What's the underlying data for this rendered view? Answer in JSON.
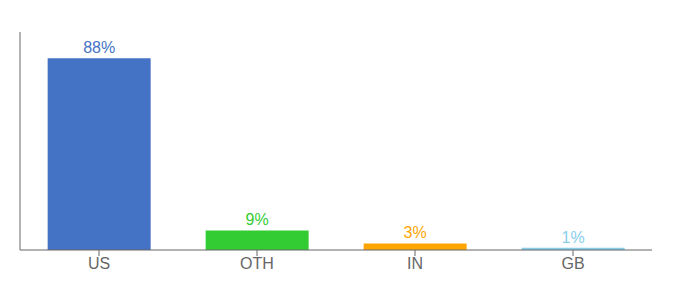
{
  "chart_data": {
    "type": "bar",
    "categories": [
      "US",
      "OTH",
      "IN",
      "GB"
    ],
    "values": [
      88,
      9,
      3,
      1
    ],
    "value_labels": [
      "88%",
      "9%",
      "3%",
      "1%"
    ],
    "colors": [
      "#4472C4",
      "#33CC33",
      "#FFA500",
      "#87CEEB"
    ],
    "ylim": [
      0,
      100
    ],
    "data_labels": true,
    "tick_labels": "x",
    "grid": false
  }
}
